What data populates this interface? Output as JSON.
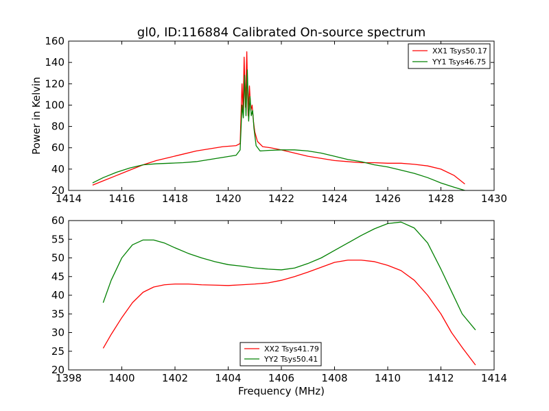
{
  "chart_data": [
    {
      "type": "line",
      "title": "gl0, ID:116884 Calibrated On-source spectrum",
      "xlabel": "",
      "ylabel": "Power in Kelvin",
      "xlim": [
        1414,
        1430
      ],
      "ylim": [
        20,
        160
      ],
      "xticks": [
        1414,
        1416,
        1418,
        1420,
        1422,
        1424,
        1426,
        1428,
        1430
      ],
      "yticks": [
        20,
        40,
        60,
        80,
        100,
        120,
        140,
        160
      ],
      "grid": false,
      "legend_position": "top-right",
      "series": [
        {
          "name": "XX1 Tsys50.17",
          "color": "#ff0000",
          "x": [
            1414.9,
            1415.3,
            1415.8,
            1416.3,
            1416.8,
            1417.3,
            1417.8,
            1418.3,
            1418.8,
            1419.3,
            1419.8,
            1420.3,
            1420.45,
            1420.52,
            1420.56,
            1420.6,
            1420.65,
            1420.7,
            1420.75,
            1420.8,
            1420.85,
            1420.9,
            1420.95,
            1421.0,
            1421.1,
            1421.3,
            1421.6,
            1422.0,
            1422.5,
            1423.0,
            1423.5,
            1424.0,
            1424.5,
            1425.0,
            1425.5,
            1426.0,
            1426.5,
            1427.0,
            1427.5,
            1428.0,
            1428.5,
            1428.9
          ],
          "y": [
            25,
            29,
            34,
            39,
            44,
            48,
            51,
            54,
            57,
            59,
            61,
            62,
            64,
            120,
            95,
            145,
            98,
            150,
            90,
            118,
            95,
            100,
            85,
            75,
            66,
            61,
            60,
            58,
            55,
            52,
            50,
            48,
            47,
            46,
            46,
            45.5,
            45.5,
            44.5,
            43,
            40,
            34,
            26
          ]
        },
        {
          "name": "YY1 Tsys46.75",
          "color": "#008000",
          "x": [
            1414.9,
            1415.3,
            1415.8,
            1416.3,
            1416.8,
            1417.3,
            1417.8,
            1418.3,
            1418.8,
            1419.3,
            1419.8,
            1420.3,
            1420.45,
            1420.52,
            1420.57,
            1420.62,
            1420.67,
            1420.72,
            1420.77,
            1420.82,
            1420.87,
            1420.92,
            1420.97,
            1421.05,
            1421.2,
            1421.5,
            1422.0,
            1422.5,
            1423.0,
            1423.5,
            1424.0,
            1424.5,
            1425.0,
            1425.5,
            1426.0,
            1426.5,
            1427.0,
            1427.5,
            1428.0,
            1428.5,
            1428.9
          ],
          "y": [
            27,
            32,
            37,
            41,
            44,
            45,
            45.5,
            46,
            47,
            49,
            51,
            53,
            58,
            100,
            88,
            128,
            90,
            133,
            85,
            108,
            90,
            95,
            78,
            62,
            57,
            57.5,
            58,
            58,
            57,
            55,
            52,
            49,
            47,
            44,
            42,
            39,
            36,
            32,
            27,
            23,
            20
          ]
        }
      ]
    },
    {
      "type": "line",
      "title": "",
      "xlabel": "Frequency (MHz)",
      "ylabel": "",
      "xlim": [
        1398,
        1414
      ],
      "ylim": [
        20,
        60
      ],
      "xticks": [
        1398,
        1400,
        1402,
        1404,
        1406,
        1408,
        1410,
        1412,
        1414
      ],
      "yticks": [
        20,
        25,
        30,
        35,
        40,
        45,
        50,
        55,
        60
      ],
      "grid": false,
      "legend_position": "bottom-center",
      "series": [
        {
          "name": "XX2 Tsys41.79",
          "color": "#ff0000",
          "x": [
            1399.3,
            1399.6,
            1400.0,
            1400.4,
            1400.8,
            1401.2,
            1401.6,
            1402.0,
            1402.5,
            1403.0,
            1403.5,
            1404.0,
            1404.5,
            1405.0,
            1405.5,
            1406.0,
            1406.5,
            1407.0,
            1407.5,
            1408.0,
            1408.5,
            1409.0,
            1409.5,
            1410.0,
            1410.5,
            1411.0,
            1411.5,
            1412.0,
            1412.4,
            1412.8,
            1413.3
          ],
          "y": [
            25.8,
            29.5,
            34,
            38,
            40.8,
            42.2,
            42.8,
            43,
            43,
            42.8,
            42.7,
            42.6,
            42.8,
            43,
            43.3,
            44,
            45,
            46.2,
            47.5,
            48.8,
            49.4,
            49.4,
            49,
            48,
            46.6,
            44,
            40,
            35,
            30,
            26,
            21.3
          ]
        },
        {
          "name": "YY2 Tsys50.41",
          "color": "#008000",
          "x": [
            1399.3,
            1399.6,
            1400.0,
            1400.4,
            1400.8,
            1401.2,
            1401.6,
            1402.0,
            1402.5,
            1403.0,
            1403.5,
            1404.0,
            1404.5,
            1405.0,
            1405.5,
            1406.0,
            1406.5,
            1407.0,
            1407.5,
            1408.0,
            1408.5,
            1409.0,
            1409.5,
            1410.0,
            1410.5,
            1411.0,
            1411.5,
            1412.0,
            1412.4,
            1412.8,
            1413.3
          ],
          "y": [
            38,
            44,
            50,
            53.5,
            54.8,
            54.8,
            54,
            52.7,
            51.2,
            50,
            49,
            48.2,
            47.8,
            47.3,
            47,
            46.8,
            47.3,
            48.5,
            50,
            52,
            54,
            56,
            57.8,
            59.2,
            59.6,
            58,
            54,
            47,
            41,
            35,
            30.7
          ]
        }
      ]
    }
  ]
}
